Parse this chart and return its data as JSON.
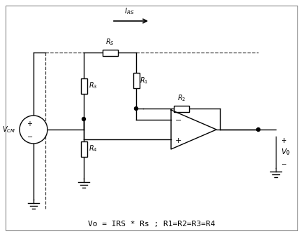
{
  "formula": "Vo = IRS * Rs ; R1=R2=R3=R4",
  "bg_color": "#ffffff",
  "line_color": "#000000",
  "fig_width": 4.34,
  "fig_height": 3.37,
  "dpi": 100
}
